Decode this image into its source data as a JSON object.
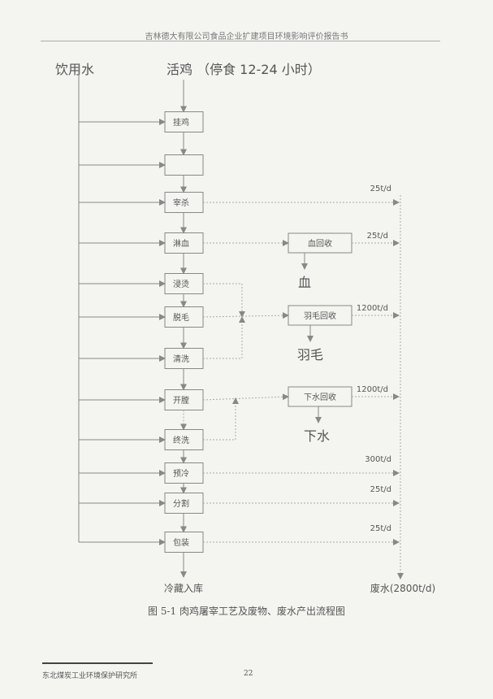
{
  "header": "吉林德大有限公司食品企业扩建项目环境影响评价报告书",
  "diagram": {
    "water_label": "饮用水",
    "input_label": "活鸡 （停食 12-24 小时）",
    "steps": [
      "挂鸡",
      "",
      "宰杀",
      "淋血",
      "浸烫",
      "脱毛",
      "清洗",
      "开膛",
      "终洗",
      "预冷",
      "分割",
      "包装"
    ],
    "recovery": [
      {
        "label": "血回收",
        "product": "血",
        "flow": "25t/d"
      },
      {
        "label": "羽毛回收",
        "product": "羽毛",
        "flow": "1200t/d"
      },
      {
        "label": "下水回收",
        "product": "下水",
        "flow": "1200t/d"
      }
    ],
    "direct_flows": [
      {
        "step": "宰杀",
        "flow": "25t/d"
      },
      {
        "step": "预冷",
        "flow": "300t/d"
      },
      {
        "step": "分割",
        "flow": "25t/d"
      },
      {
        "step": "包装",
        "flow": "25t/d"
      }
    ],
    "output_label": "冷藏入库",
    "wastewater_label": "废水(2800t/d)"
  },
  "caption": "图 5-1 肉鸡屠宰工艺及废物、废水产出流程图",
  "footer": {
    "org": "东北煤炭工业环境保护研究所",
    "page": "22"
  }
}
